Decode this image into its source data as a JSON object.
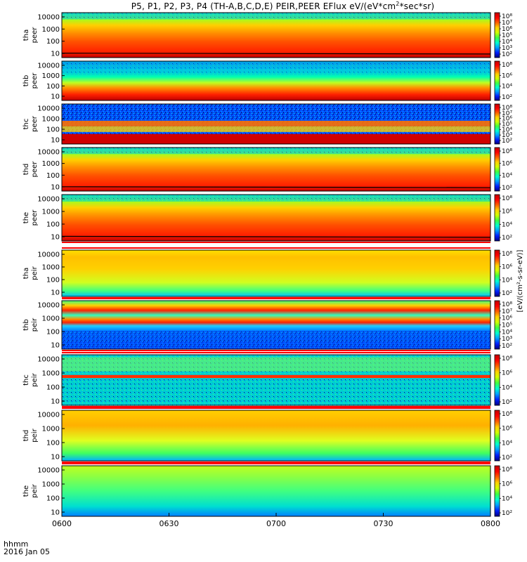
{
  "chart_data": {
    "type": "heatmap",
    "title": {
      "prefix": "P5, P1, P2, P3, P4 (TH-A,B,C,D,E) PEIR,PEER EFlux eV/(eV*cm",
      "exp": "2",
      "suffix": "*sec*sr)"
    },
    "x_axis": {
      "range": [
        "0600",
        "0800"
      ],
      "tick_labels": [
        "0600",
        "0630",
        "0700",
        "0730",
        "0800"
      ],
      "tick_minutes": [
        0,
        30,
        60,
        90,
        120
      ],
      "label_line1": "hhmm",
      "label_line2": "2016 Jan 05"
    },
    "y_tick_labels": [
      "10000",
      "1000",
      "100",
      "10"
    ],
    "y_scale": "log",
    "colorbar": {
      "colormap": [
        "#000080",
        "#0020ff",
        "#00a0ff",
        "#00ffd0",
        "#40ff40",
        "#d0ff00",
        "#ffd000",
        "#ff6000",
        "#ff0000",
        "#c00000"
      ],
      "tick_labels": [
        "10²",
        "10⁴",
        "10⁶",
        "10⁸"
      ],
      "unit_label": "[eV/(cm²-s-sr-eV)]"
    },
    "panels": [
      {
        "line1": "tha",
        "line2": "peer",
        "colorbar_ticks": [
          "10⁸",
          "10⁷",
          "10⁶",
          "10⁵",
          "10⁴",
          "10³",
          "10²"
        ]
      },
      {
        "line1": "thb",
        "line2": "peer",
        "colorbar_ticks": [
          "10⁸",
          "10⁶",
          "10⁴",
          "10²"
        ]
      },
      {
        "line1": "thc",
        "line2": "peer",
        "colorbar_ticks": [
          "10⁸",
          "10⁷",
          "10⁶",
          "10⁵",
          "10⁴",
          "10³",
          "10²"
        ]
      },
      {
        "line1": "thd",
        "line2": "peer",
        "colorbar_ticks": [
          "10⁸",
          "10⁶",
          "10⁴",
          "10²"
        ]
      },
      {
        "line1": "the",
        "line2": "peer",
        "colorbar_ticks": [
          "10⁸",
          "10⁶",
          "10⁴",
          "10²"
        ]
      },
      {
        "line1": "tha",
        "line2": "peir",
        "colorbar_ticks": [
          "10⁸",
          "10⁶",
          "10⁴",
          "10²"
        ]
      },
      {
        "line1": "thb",
        "line2": "peir",
        "colorbar_ticks": [
          "10⁸",
          "10⁷",
          "10⁶",
          "10⁵",
          "10⁴",
          "10³",
          "10²"
        ]
      },
      {
        "line1": "thc",
        "line2": "peir",
        "colorbar_ticks": [
          "10⁸",
          "10⁶",
          "10⁴",
          "10²"
        ]
      },
      {
        "line1": "thd",
        "line2": "peir",
        "colorbar_ticks": [
          "10⁸",
          "10⁶",
          "10⁴",
          "10²"
        ]
      },
      {
        "line1": "the",
        "line2": "peir",
        "colorbar_ticks": [
          "10⁸",
          "10⁶",
          "10⁴",
          "10²"
        ]
      }
    ]
  }
}
